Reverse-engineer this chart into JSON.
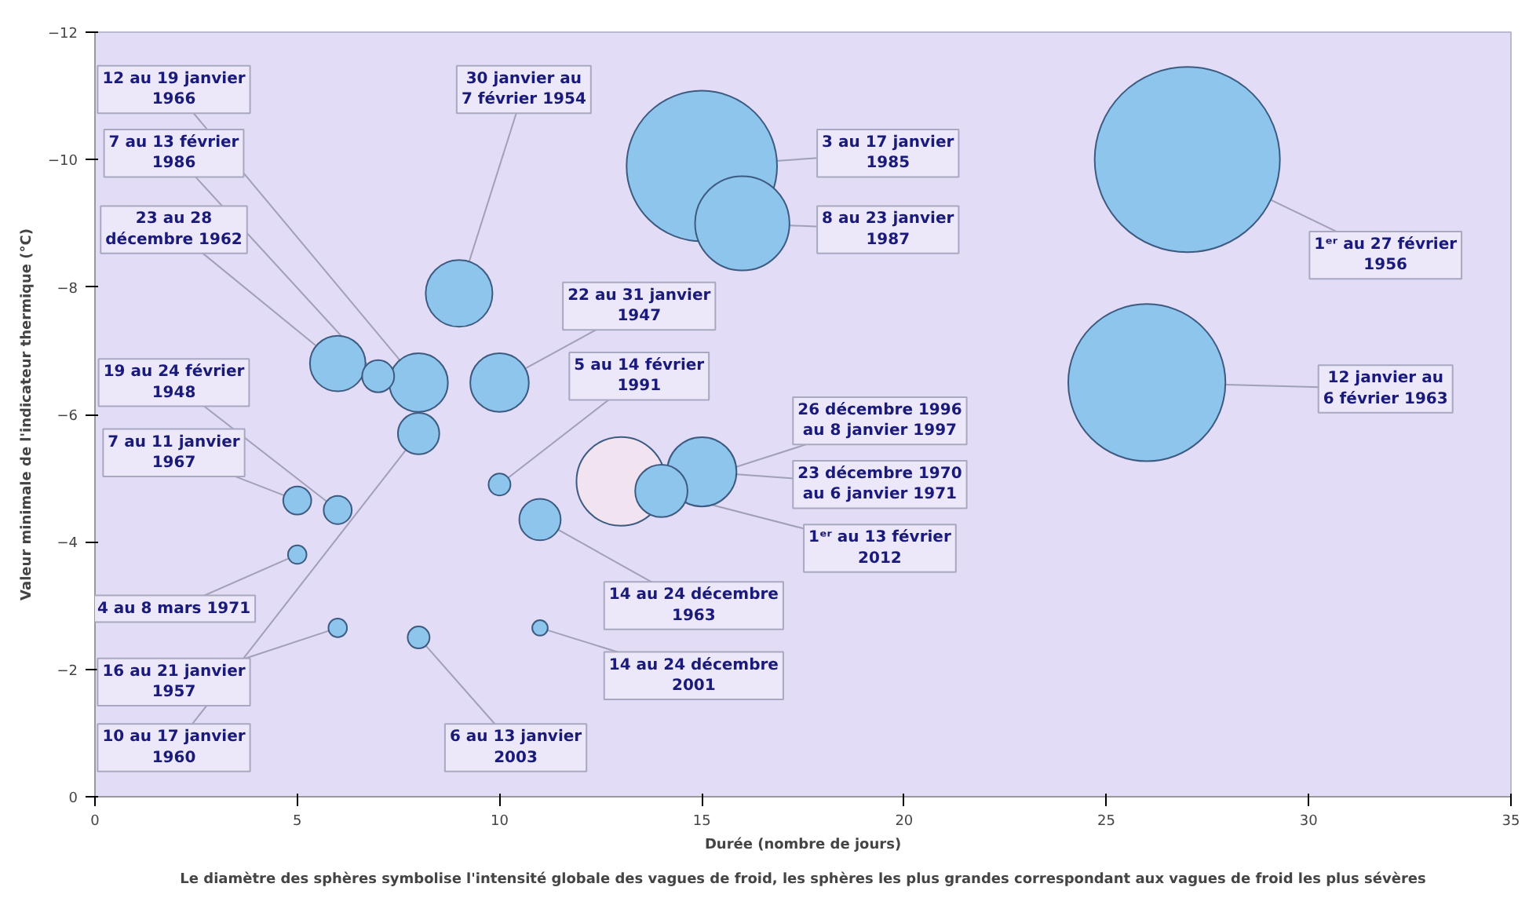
{
  "chart_data": {
    "type": "bubble",
    "xlabel": "Durée (nombre de jours)",
    "ylabel": "Valeur minimale de l'indicateur thermique (°C)",
    "annotations": [
      "Le diamètre des sphères symbolise l'intensité globale des vagues de froid, les sphères les plus grandes correspondant aux vagues de froid les plus sévères"
    ],
    "xlim": [
      0,
      35
    ],
    "xticks": [
      0,
      5,
      10,
      15,
      20,
      25,
      30,
      35
    ],
    "ylim": [
      0,
      -12
    ],
    "yticks": [
      0,
      -2,
      -4,
      -6,
      -8,
      -10,
      -12
    ],
    "grid": false,
    "x": [
      27,
      26,
      15,
      16,
      9,
      10,
      6,
      7,
      8,
      8,
      10,
      5,
      5,
      6,
      6,
      8,
      11,
      11,
      13,
      14,
      15
    ],
    "values": [
      -10,
      -6.5,
      -9.9,
      -9,
      -7.9,
      -6.5,
      -6.8,
      -6.6,
      -6.5,
      -5.7,
      -4.9,
      -4.65,
      -3.8,
      -4.5,
      -2.65,
      -2.5,
      -4.35,
      -2.65,
      -4.95,
      -4.8,
      -5.1
    ],
    "sizes": [
      1,
      0.72,
      0.66,
      0.26,
      0.13,
      0.1,
      0.09,
      0.03,
      0.1,
      0.05,
      0.014,
      0.023,
      0.01,
      0.023,
      0.01,
      0.014,
      0.05,
      0.007,
      0.23,
      0.08,
      0.14
    ],
    "colors": [
      "#8ec5ec",
      "#8ec5ec",
      "#8ec5ec",
      "#8ec5ec",
      "#8ec5ec",
      "#8ec5ec",
      "#8ec5ec",
      "#8ec5ec",
      "#8ec5ec",
      "#8ec5ec",
      "#8ec5ec",
      "#8ec5ec",
      "#8ec5ec",
      "#8ec5ec",
      "#8ec5ec",
      "#8ec5ec",
      "#8ec5ec",
      "#8ec5ec",
      "#f1e3ef",
      "#8ec5ec",
      "#8ec5ec"
    ],
    "value_labels": [
      "1ᵉʳ au 27 février\n1956",
      "12 janvier au\n6 février 1963",
      "3 au 17 janvier\n1985",
      "8 au 23 janvier\n1987",
      "30 janvier au\n7 février 1954",
      "22 au 31 janvier\n1947",
      "23 au 28\ndécembre 1962",
      "7 au 13 février\n1986",
      "12 au 19 janvier\n1966",
      "10 au 17 janvier\n1960",
      "5 au 14 février\n1991",
      "7 au 11 janvier\n1967",
      "4 au 8 mars 1971",
      "19 au 24 février\n1948",
      "16 au 21 janvier\n1957",
      "6 au 13 janvier\n2003",
      "14 au 24 décembre\n1963",
      "14 au 24 décembre\n2001",
      "1ᵉʳ au 13 février\n2012",
      "26 décembre 1996\nau 8 janvier 1997",
      "23 décembre 1970\nau 6 janvier 1971"
    ]
  }
}
